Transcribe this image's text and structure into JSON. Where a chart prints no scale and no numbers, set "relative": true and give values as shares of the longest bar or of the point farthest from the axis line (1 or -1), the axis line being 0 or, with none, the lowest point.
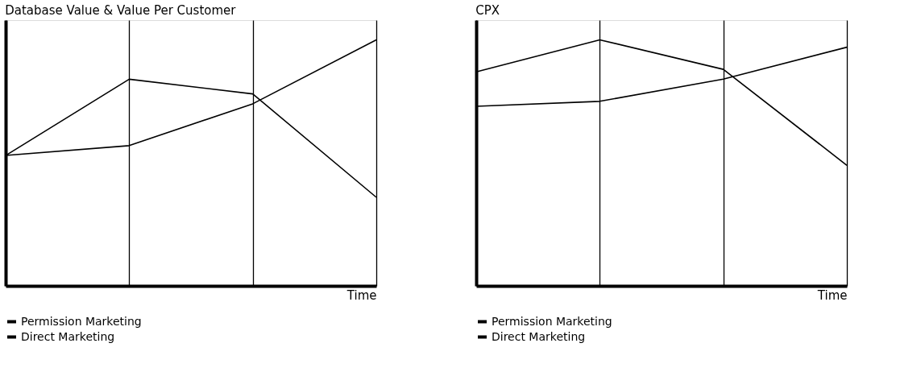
{
  "chart_data": [
    {
      "type": "line",
      "title": "Database Value & Value Per Customer",
      "xlabel": "Time",
      "categories": [
        null,
        null,
        null,
        null
      ],
      "relative": true,
      "grid": "x",
      "legend": "bottom left",
      "series": [
        {
          "name": "Permission Marketing",
          "color": "#000000",
          "values": [
            0.53,
            0.84,
            0.78,
            0.36
          ]
        },
        {
          "name": "Direct Marketing",
          "color": "#000000",
          "values": [
            0.53,
            0.57,
            0.74,
            1
          ]
        }
      ]
    },
    {
      "type": "line",
      "title": "CPX",
      "xlabel": "Time",
      "categories": [
        null,
        null,
        null,
        null
      ],
      "relative": true,
      "grid": "x",
      "legend": "bottom left",
      "series": [
        {
          "name": "Permission Marketing",
          "color": "#000000",
          "values": [
            0.87,
            1,
            0.88,
            0.49
          ]
        },
        {
          "name": "Direct Marketing",
          "color": "#000000",
          "values": [
            0.73,
            0.75,
            0.84,
            0.97
          ]
        }
      ]
    }
  ]
}
